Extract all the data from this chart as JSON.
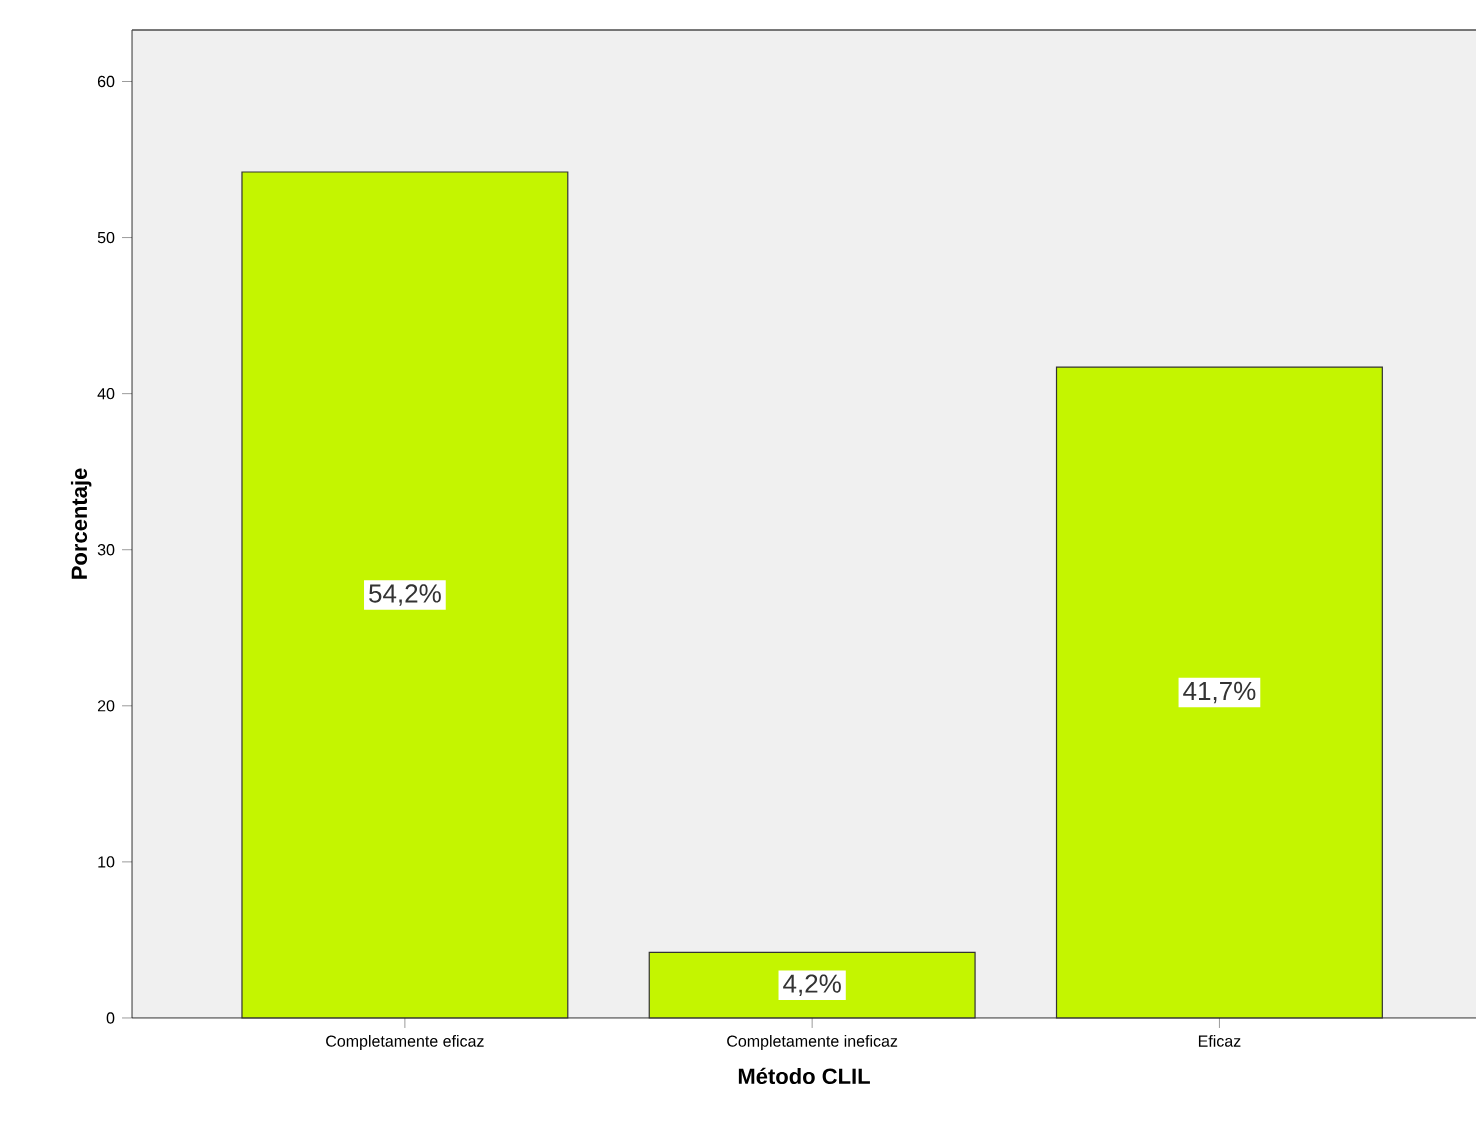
{
  "chart_data": {
    "type": "bar",
    "xlabel": "Método CLIL",
    "ylabel": "Porcentaje",
    "categories": [
      "Completamente eficaz",
      "Completamente ineficaz",
      "Eficaz"
    ],
    "values": [
      54.2,
      4.2,
      41.7
    ],
    "value_labels": [
      "54,2%",
      "4,2%",
      "41,7%"
    ],
    "color": "#c4f500",
    "ylim": [
      0,
      63.3
    ],
    "yticks": [
      0,
      10,
      20,
      30,
      40,
      50,
      60
    ]
  }
}
